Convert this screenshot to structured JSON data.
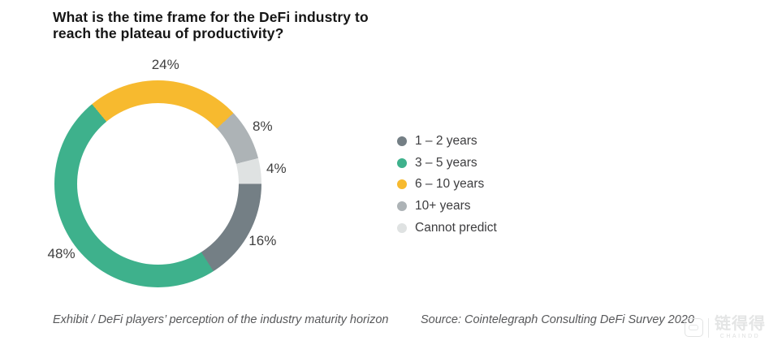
{
  "title": {
    "line1": "What is the time frame for the DeFi industry to",
    "line2": "reach the plateau of productivity?"
  },
  "chart_data": {
    "type": "pie",
    "subtype": "donut",
    "title": "What is the time frame for the DeFi industry to reach the plateau of productivity?",
    "start_angle_deg": 90,
    "direction": "clockwise",
    "legend_position": "right",
    "series": [
      {
        "label": "1 – 2 years",
        "value": 16,
        "data_label": "16%",
        "color": "#747f85"
      },
      {
        "label": "3 – 5 years",
        "value": 48,
        "data_label": "48%",
        "color": "#3eb18c"
      },
      {
        "label": "6 – 10 years",
        "value": 24,
        "data_label": "24%",
        "color": "#f7ba2f"
      },
      {
        "label": "10+ years",
        "value": 8,
        "data_label": "8%",
        "color": "#adb3b6"
      },
      {
        "label": "Cannot predict",
        "value": 4,
        "data_label": "4%",
        "color": "#dfe2e2"
      }
    ]
  },
  "captions": {
    "exhibit": "Exhibit / DeFi players’ perception of the industry maturity horizon",
    "source": "Source: Cointelegraph Consulting DeFi Survey 2020"
  },
  "watermark": {
    "cjk": "链得得",
    "latin": "CHAINDD"
  }
}
